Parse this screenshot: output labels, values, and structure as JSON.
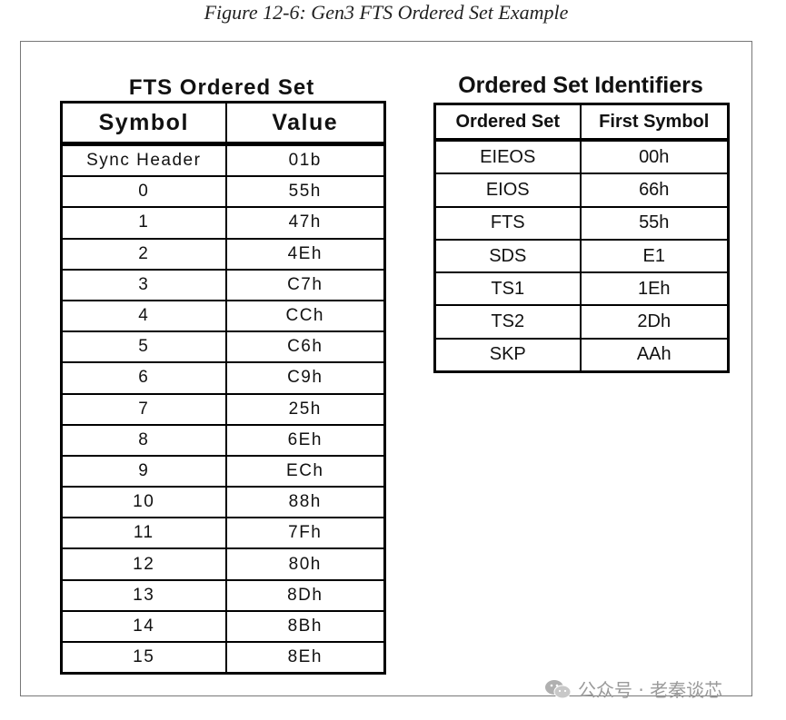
{
  "caption": "Figure 12-6: Gen3 FTS Ordered Set Example",
  "fts_table": {
    "title": "FTS Ordered Set",
    "headers": [
      "Symbol",
      "Value"
    ],
    "rows": [
      [
        "Sync Header",
        "01b"
      ],
      [
        "0",
        "55h"
      ],
      [
        "1",
        "47h"
      ],
      [
        "2",
        "4Eh"
      ],
      [
        "3",
        "C7h"
      ],
      [
        "4",
        "CCh"
      ],
      [
        "5",
        "C6h"
      ],
      [
        "6",
        "C9h"
      ],
      [
        "7",
        "25h"
      ],
      [
        "8",
        "6Eh"
      ],
      [
        "9",
        "ECh"
      ],
      [
        "10",
        "88h"
      ],
      [
        "11",
        "7Fh"
      ],
      [
        "12",
        "80h"
      ],
      [
        "13",
        "8Dh"
      ],
      [
        "14",
        "8Bh"
      ],
      [
        "15",
        "8Eh"
      ]
    ]
  },
  "os_table": {
    "title": "Ordered Set Identifiers",
    "headers": [
      "Ordered Set",
      "First Symbol"
    ],
    "rows": [
      [
        "EIEOS",
        "00h"
      ],
      [
        "EIOS",
        "66h"
      ],
      [
        "FTS",
        "55h"
      ],
      [
        "SDS",
        "E1"
      ],
      [
        "TS1",
        "1Eh"
      ],
      [
        "TS2",
        "2Dh"
      ],
      [
        "SKP",
        "AAh"
      ]
    ]
  },
  "watermark": {
    "text": "公众号 · 老秦谈芯",
    "icon": "wechat-icon",
    "color": "#9a9a9a"
  }
}
